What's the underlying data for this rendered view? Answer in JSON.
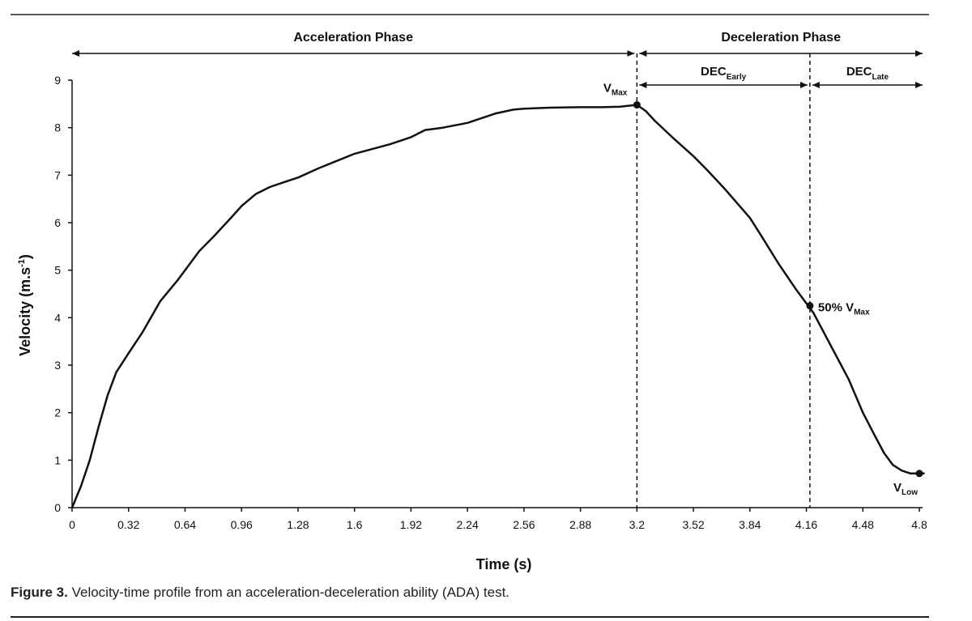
{
  "chart_data": {
    "type": "line",
    "xlabel": "Time (s)",
    "ylabel_main": "Velocity  (m.s",
    "ylabel_sup": "-1",
    "ylabel_close": ")",
    "xlim": [
      0,
      4.8
    ],
    "ylim": [
      0,
      9
    ],
    "xticks": [
      "0",
      "0.32",
      "0.64",
      "0.96",
      "1.28",
      "1.6",
      "1.92",
      "2.24",
      "2.56",
      "2.88",
      "3.2",
      "3.52",
      "3.84",
      "4.16",
      "4.48",
      "4.8"
    ],
    "yticks": [
      "0",
      "1",
      "2",
      "3",
      "4",
      "5",
      "6",
      "7",
      "8",
      "9"
    ],
    "series": [
      {
        "name": "Velocity",
        "x": [
          0,
          0.05,
          0.1,
          0.15,
          0.2,
          0.25,
          0.32,
          0.4,
          0.5,
          0.6,
          0.64,
          0.72,
          0.8,
          0.9,
          0.96,
          1.04,
          1.12,
          1.2,
          1.28,
          1.4,
          1.5,
          1.6,
          1.7,
          1.8,
          1.92,
          2.0,
          2.1,
          2.24,
          2.32,
          2.4,
          2.5,
          2.56,
          2.7,
          2.88,
          3.0,
          3.1,
          3.2,
          3.25,
          3.3,
          3.4,
          3.52,
          3.6,
          3.7,
          3.84,
          3.9,
          4.0,
          4.1,
          4.2,
          4.3,
          4.4,
          4.48,
          4.55,
          4.6,
          4.65,
          4.7,
          4.75,
          4.8,
          4.83
        ],
        "values": [
          0,
          0.45,
          1.0,
          1.7,
          2.35,
          2.85,
          3.25,
          3.7,
          4.35,
          4.8,
          5.0,
          5.4,
          5.7,
          6.1,
          6.35,
          6.6,
          6.75,
          6.85,
          6.95,
          7.15,
          7.3,
          7.45,
          7.55,
          7.65,
          7.8,
          7.95,
          8.0,
          8.1,
          8.2,
          8.3,
          8.38,
          8.4,
          8.42,
          8.43,
          8.43,
          8.44,
          8.48,
          8.35,
          8.15,
          7.8,
          7.4,
          7.1,
          6.7,
          6.1,
          5.75,
          5.15,
          4.6,
          4.1,
          3.4,
          2.7,
          2.0,
          1.5,
          1.15,
          0.9,
          0.78,
          0.72,
          0.72,
          0.72
        ]
      }
    ],
    "markers": [
      {
        "name": "V",
        "sub": "Max",
        "x": 3.2,
        "y": 8.48
      },
      {
        "name": "50% V",
        "sub": "Max",
        "x": 4.18,
        "y": 4.25
      },
      {
        "name": "V",
        "sub": "Low",
        "x": 4.8,
        "y": 0.72
      }
    ],
    "reference_lines_x": [
      3.2,
      4.18
    ],
    "phases": [
      {
        "label": "Acceleration Phase",
        "x_start": 0,
        "x_end": 3.2
      },
      {
        "label": "Deceleration Phase",
        "x_start": 3.2,
        "x_end": 4.8
      }
    ],
    "subphases": [
      {
        "label": "DEC",
        "sub": "Early",
        "x_start": 3.2,
        "x_end": 4.18
      },
      {
        "label": "DEC",
        "sub": "Late",
        "x_start": 4.18,
        "x_end": 4.8
      }
    ]
  },
  "caption": {
    "label": "Figure 3.",
    "text": " Velocity-time profile from an acceleration-deceleration ability (ADA) test."
  }
}
